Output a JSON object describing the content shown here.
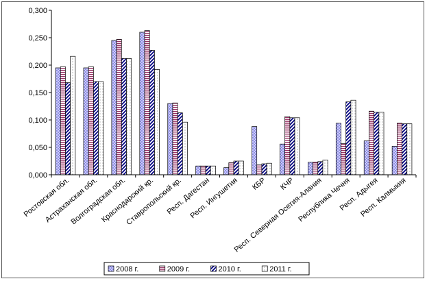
{
  "chart_data": {
    "type": "bar",
    "title": "",
    "xlabel": "",
    "ylabel": "",
    "ylim": [
      0,
      0.3
    ],
    "yticks": [
      "0,000",
      "0,050",
      "0,100",
      "0,150",
      "0,200",
      "0,250",
      "0,300"
    ],
    "grid": false,
    "legend_position": "bottom",
    "categories": [
      "Ростовская обл.",
      "Астраханская обл.",
      "Волгоградская обл.",
      "Краснодарский кр.",
      "Ставропольский кр.",
      "Респ. Дагестан",
      "Респ. Ингушетия",
      "КБР",
      "КЧР",
      "Респ. Северная Осетия-Алания",
      "Республика Чечня",
      "Респ. Адыгея",
      "Респ. Калмыкия"
    ],
    "series": [
      {
        "name": "2008 г.",
        "pattern": "dots",
        "color": "#9999ff",
        "values": [
          0.195,
          0.195,
          0.245,
          0.26,
          0.13,
          0.016,
          0.013,
          0.088,
          0.056,
          0.023,
          0.094,
          0.062,
          0.052
        ]
      },
      {
        "name": "2009 г.",
        "pattern": "hstripe",
        "color": "#993366",
        "values": [
          0.197,
          0.197,
          0.247,
          0.263,
          0.131,
          0.016,
          0.022,
          0.018,
          0.106,
          0.023,
          0.057,
          0.116,
          0.094
        ]
      },
      {
        "name": "2010 г.",
        "pattern": "diagonal",
        "color": "#000080",
        "values": [
          0.168,
          0.17,
          0.212,
          0.227,
          0.113,
          0.016,
          0.025,
          0.02,
          0.104,
          0.024,
          0.133,
          0.114,
          0.093
        ]
      },
      {
        "name": "2011 г.",
        "pattern": "sparse-dots",
        "color": "#808080",
        "values": [
          0.216,
          0.17,
          0.212,
          0.192,
          0.096,
          0.016,
          0.025,
          0.021,
          0.104,
          0.027,
          0.136,
          0.114,
          0.093
        ]
      }
    ]
  }
}
